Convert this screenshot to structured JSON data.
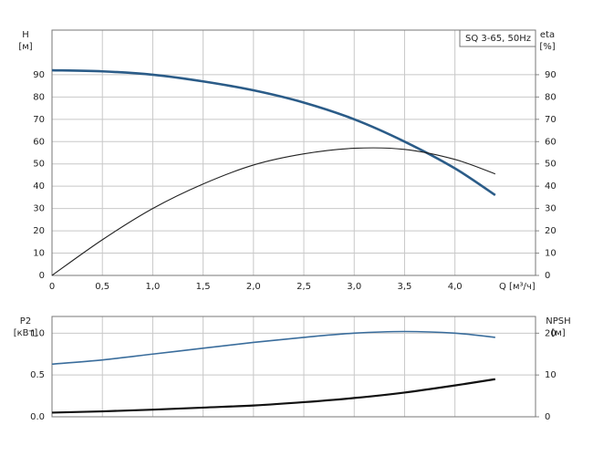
{
  "chart_data": [
    {
      "type": "line",
      "annotation": "SQ 3-65, 50Hz",
      "ylabel": "H",
      "yunit": "[м]",
      "y2label": "eta",
      "y2unit": "[%]",
      "xlabel": "Q [м³/ч]",
      "x": [
        0,
        0.5,
        1.0,
        1.5,
        2.0,
        2.5,
        3.0,
        3.5,
        4.0,
        4.4
      ],
      "series": [
        {
          "color": "#2b5c88",
          "values": [
            92,
            91.5,
            90,
            87,
            83,
            77.5,
            70,
            60,
            48,
            36
          ]
        },
        {
          "color": "#222222",
          "axis": "y2",
          "values": [
            0,
            16,
            30,
            41,
            49.5,
            54.5,
            57,
            56.5,
            52,
            45.5
          ]
        }
      ],
      "xlim": [
        0,
        4.8
      ],
      "xticks": [
        0,
        {
          "value": 0.5,
          "label": "0,5"
        },
        {
          "value": 1.0,
          "label": "1,0"
        },
        {
          "value": 1.5,
          "label": "1,5"
        },
        {
          "value": 2.0,
          "label": "2,0"
        },
        {
          "value": 2.5,
          "label": "2,5"
        },
        {
          "value": 3.0,
          "label": "3,0"
        },
        {
          "value": 3.5,
          "label": "3,5"
        },
        {
          "value": 4.0,
          "label": "4,0"
        }
      ],
      "ylim": [
        0,
        110
      ],
      "yticks": [
        0,
        10,
        20,
        30,
        40,
        50,
        60,
        70,
        80,
        90
      ],
      "y2lim": [
        0,
        110
      ],
      "y2ticks": [
        0,
        10,
        20,
        30,
        40,
        50,
        60,
        70,
        80,
        90
      ],
      "grid": true
    },
    {
      "type": "line",
      "ylabel": "P2",
      "yunit": "[кВт]",
      "y2label": "NPSH",
      "y2unit": "[м]",
      "x": [
        0,
        0.5,
        1.0,
        1.5,
        2.0,
        2.5,
        3.0,
        3.5,
        4.0,
        4.4
      ],
      "series": [
        {
          "color": "#3a6d9c",
          "values": [
            0.63,
            0.68,
            0.75,
            0.82,
            0.89,
            0.95,
            1.0,
            1.02,
            1.0,
            0.95
          ]
        },
        {
          "color": "#111111",
          "axis": "y2",
          "values": [
            1,
            1.3,
            1.7,
            2.2,
            2.7,
            3.5,
            4.5,
            5.8,
            7.5,
            9
          ]
        }
      ],
      "xlim": [
        0,
        4.8
      ],
      "xticks": [
        0,
        0.5,
        1.0,
        1.5,
        2.0,
        2.5,
        3.0,
        3.5,
        4.0
      ],
      "ylim": [
        0,
        1.2
      ],
      "yticks": [
        {
          "value": 0,
          "label": "0.0"
        },
        {
          "value": 0.5,
          "label": "0.5"
        },
        {
          "value": 1.0,
          "label": "1.0"
        }
      ],
      "y2lim": [
        0,
        24
      ],
      "y2ticks": [
        0,
        10,
        20
      ],
      "grid": true
    }
  ]
}
